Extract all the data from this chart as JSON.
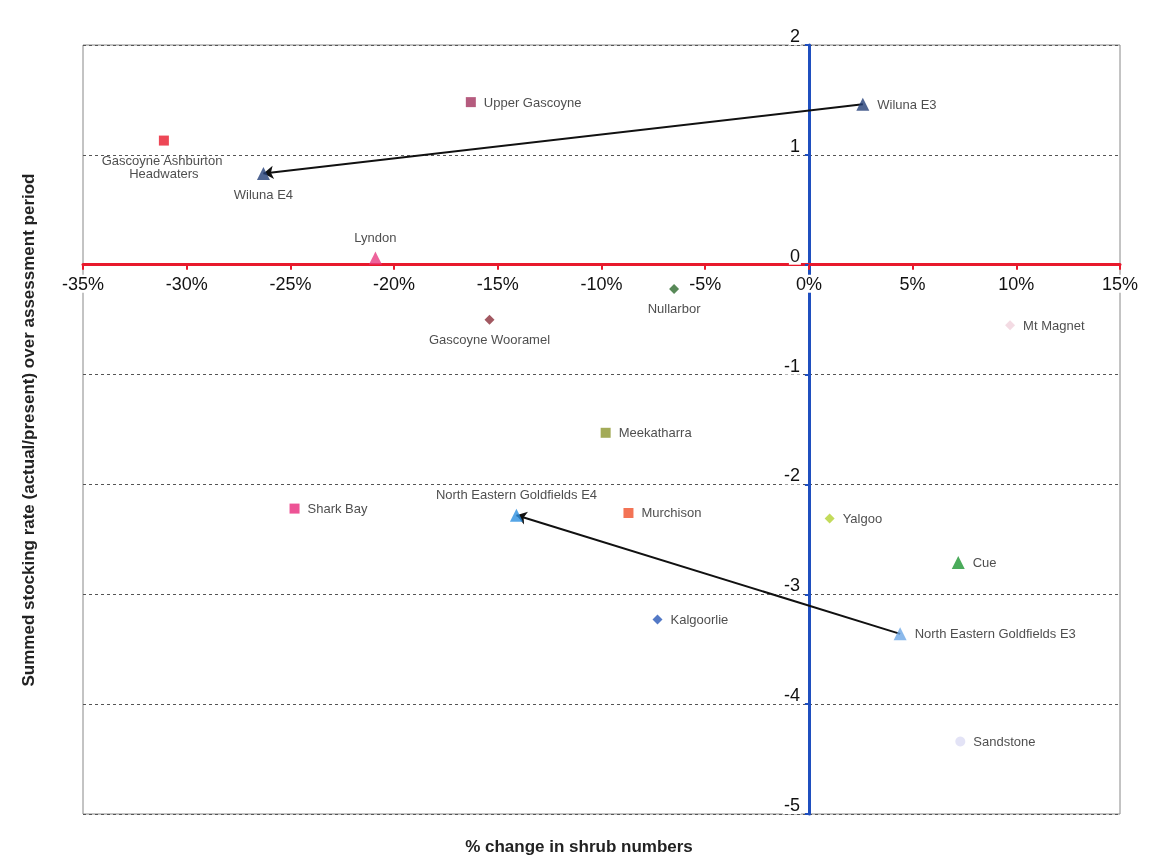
{
  "chart_data": {
    "type": "scatter",
    "xlabel": "% change in shrub numbers",
    "ylabel": "Summed stocking rate (actual/present) over assessment period",
    "xlim": [
      -35,
      15
    ],
    "ylim": [
      -5,
      2
    ],
    "xticks": [
      {
        "value": -35,
        "label": "-35%"
      },
      {
        "value": -30,
        "label": "-30%"
      },
      {
        "value": -25,
        "label": "-25%"
      },
      {
        "value": -20,
        "label": "-20%"
      },
      {
        "value": -15,
        "label": "-15%"
      },
      {
        "value": -10,
        "label": "-10%"
      },
      {
        "value": -5,
        "label": "-5%"
      },
      {
        "value": 0,
        "label": "0%"
      },
      {
        "value": 5,
        "label": "5%"
      },
      {
        "value": 10,
        "label": "10%"
      },
      {
        "value": 15,
        "label": "15%"
      }
    ],
    "yticks": [
      -5,
      -4,
      -3,
      -2,
      -1,
      0,
      1,
      2
    ],
    "grid": "y",
    "legend": false,
    "series": [
      {
        "name": "Upper Gascoyne",
        "marker": "square",
        "color": "#a3325e",
        "x": [
          -16.3
        ],
        "values": [
          1.48
        ]
      },
      {
        "name": "Wiluna E3",
        "marker": "triangle",
        "color": "#233f78",
        "x": [
          2.6
        ],
        "values": [
          1.46
        ]
      },
      {
        "name": "Gascoyne Ashburton Headwaters",
        "marker": "square",
        "color": "#e8192c",
        "x": [
          -31.1
        ],
        "values": [
          1.13
        ]
      },
      {
        "name": "Wiluna E4",
        "marker": "triangle",
        "color": "#233f78",
        "x": [
          -26.3
        ],
        "values": [
          0.83
        ]
      },
      {
        "name": "Lyndon",
        "marker": "triangle",
        "color": "#e83c82",
        "x": [
          -20.9
        ],
        "values": [
          0.06
        ]
      },
      {
        "name": "Nullarbor",
        "marker": "diamond",
        "color": "#2e6b2e",
        "x": [
          -6.5
        ],
        "values": [
          -0.22
        ]
      },
      {
        "name": "Gascoyne Wooramel",
        "marker": "diamond",
        "color": "#8b2e3a",
        "x": [
          -15.4
        ],
        "values": [
          -0.5
        ]
      },
      {
        "name": "Mt Magnet",
        "marker": "diamond",
        "color": "#f0d2dc",
        "x": [
          9.7
        ],
        "values": [
          -0.55
        ]
      },
      {
        "name": "Meekatharra",
        "marker": "square",
        "color": "#8c962e",
        "x": [
          -9.8
        ],
        "values": [
          -1.53
        ]
      },
      {
        "name": "Shark Bay",
        "marker": "square",
        "color": "#e8287a",
        "x": [
          -24.8
        ],
        "values": [
          -2.22
        ]
      },
      {
        "name": "North Eastern Goldfields E4",
        "marker": "triangle",
        "color": "#2a8ee0",
        "x": [
          -14.1
        ],
        "values": [
          -2.28
        ]
      },
      {
        "name": "Murchison",
        "marker": "square",
        "color": "#f0502a",
        "x": [
          -8.7
        ],
        "values": [
          -2.26
        ]
      },
      {
        "name": "Yalgoo",
        "marker": "diamond",
        "color": "#b4d232",
        "x": [
          1.0
        ],
        "values": [
          -2.31
        ]
      },
      {
        "name": "Cue",
        "marker": "triangle",
        "color": "#1e9632",
        "x": [
          7.2
        ],
        "values": [
          -2.71
        ]
      },
      {
        "name": "Kalgoorlie",
        "marker": "diamond",
        "color": "#2858b8",
        "x": [
          -7.3
        ],
        "values": [
          -3.23
        ]
      },
      {
        "name": "North Eastern Goldfields E3",
        "marker": "triangle",
        "color": "#6ea8e6",
        "x": [
          4.4
        ],
        "values": [
          -3.36
        ]
      },
      {
        "name": "Sandstone",
        "marker": "circle",
        "color": "#dcdcf4",
        "x": [
          7.3
        ],
        "values": [
          -4.34
        ]
      }
    ]
  }
}
